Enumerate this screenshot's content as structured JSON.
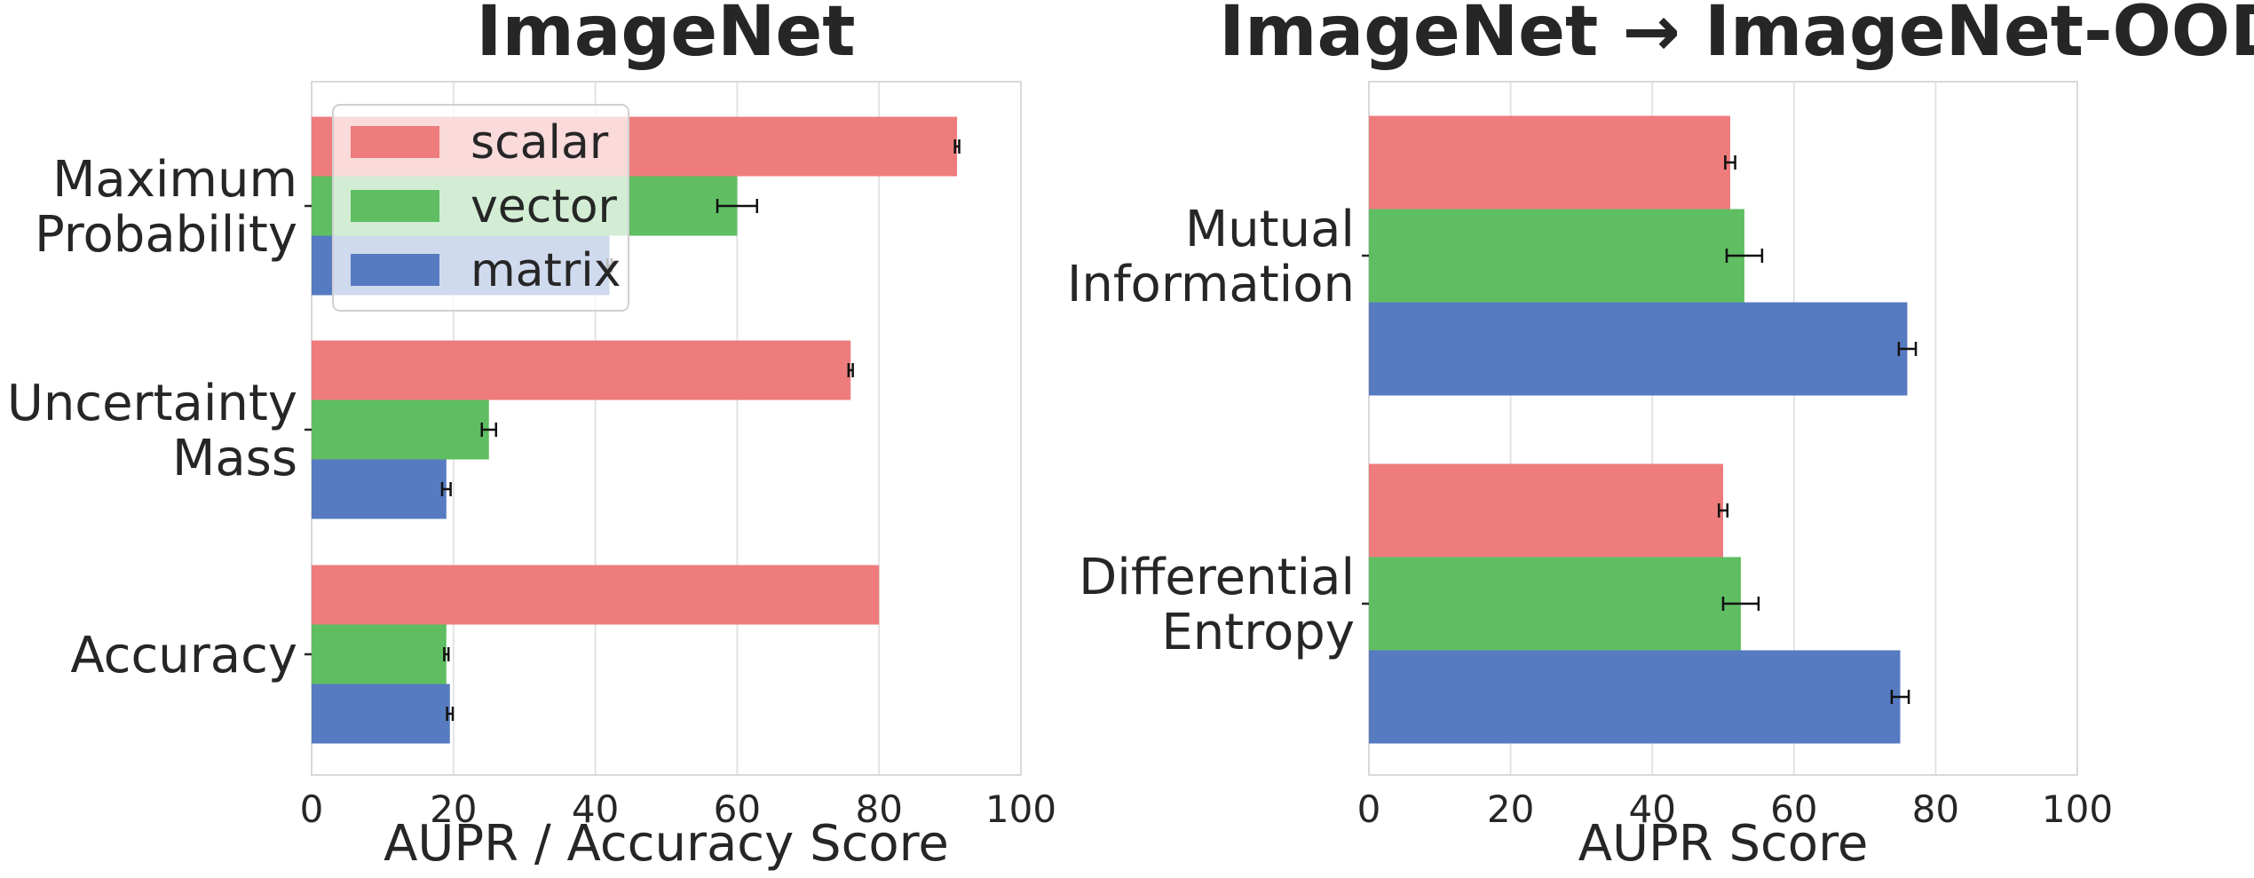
{
  "chart_data": [
    {
      "type": "bar",
      "orientation": "horizontal",
      "title": "ImageNet",
      "xlabel": "AUPR / Accuracy Score",
      "ylabel": "",
      "xlim": [
        0,
        100
      ],
      "xticks": [
        0,
        20,
        40,
        60,
        80,
        100
      ],
      "grid": true,
      "legend": "top-left",
      "categories": [
        [
          "Maximum",
          "Probability"
        ],
        [
          "Uncertainty",
          "Mass"
        ],
        [
          "Accuracy"
        ]
      ],
      "series": [
        {
          "name": "scalar",
          "color": "#ee7c7c",
          "values": [
            91,
            76,
            80
          ],
          "errors": [
            0.3,
            0.3,
            null
          ]
        },
        {
          "name": "vector",
          "color": "#5fbe62",
          "values": [
            60,
            25,
            19
          ],
          "errors": [
            2.8,
            1.0,
            0.3
          ]
        },
        {
          "name": "matrix",
          "color": "#577bc1",
          "values": [
            42,
            19,
            19.5
          ],
          "errors": [
            0.3,
            0.6,
            0.4
          ]
        }
      ]
    },
    {
      "type": "bar",
      "orientation": "horizontal",
      "title": "ImageNet → ImageNet-OOD",
      "xlabel": "AUPR Score",
      "ylabel": "",
      "xlim": [
        0,
        100
      ],
      "xticks": [
        0,
        20,
        40,
        60,
        80,
        100
      ],
      "grid": true,
      "legend": "none",
      "categories": [
        [
          "Mutual",
          "Information"
        ],
        [
          "Differential",
          "Entropy"
        ]
      ],
      "series": [
        {
          "name": "scalar",
          "color": "#ee7c7c",
          "values": [
            51,
            50
          ],
          "errors": [
            0.7,
            0.6
          ]
        },
        {
          "name": "vector",
          "color": "#5fbe62",
          "values": [
            53,
            52.5
          ],
          "errors": [
            2.5,
            2.5
          ]
        },
        {
          "name": "matrix",
          "color": "#577bc1",
          "values": [
            76,
            75
          ],
          "errors": [
            1.2,
            1.2
          ]
        }
      ]
    }
  ]
}
